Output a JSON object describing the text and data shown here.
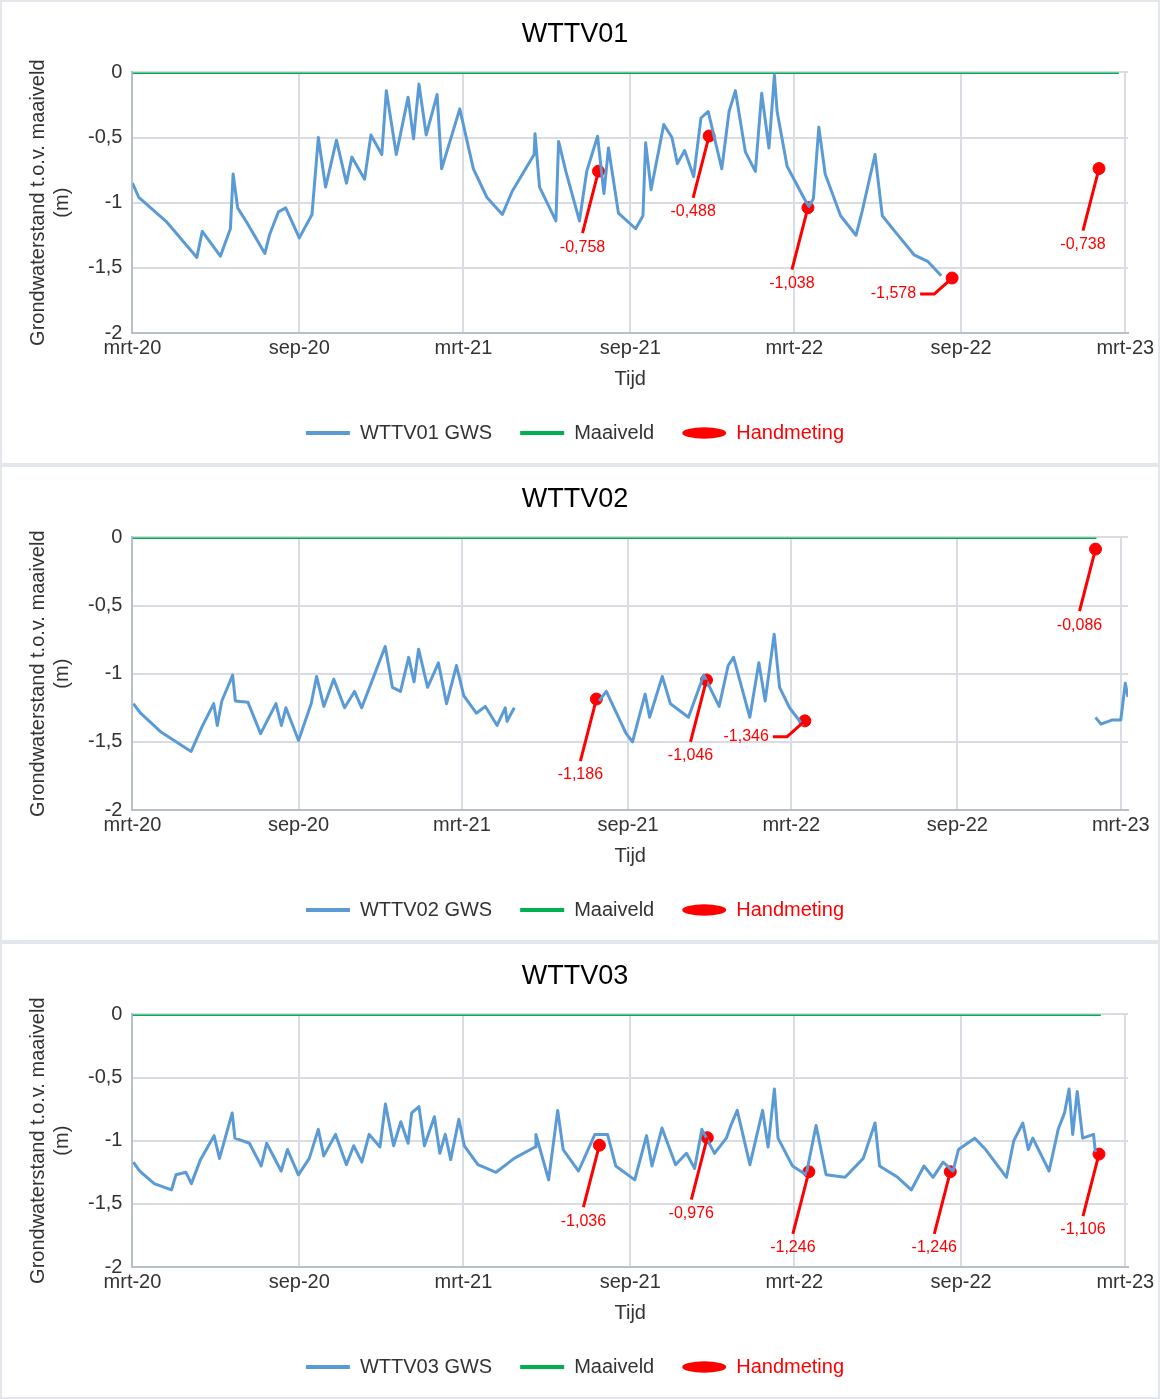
{
  "chart_data": [
    {
      "type": "line",
      "title": "WTTV01",
      "xlabel": "Tijd",
      "ylabel": "Grondwaterstand t.o.v. maaiveld (m)",
      "xlim": [
        "2020-03-01",
        "2023-03-04"
      ],
      "ylim": [
        -2,
        0
      ],
      "xticks": [
        {
          "value": "2020-03-01",
          "label": "mrt-20"
        },
        {
          "value": "2020-09-01",
          "label": "sep-20"
        },
        {
          "value": "2021-03-01",
          "label": "mrt-21"
        },
        {
          "value": "2021-09-01",
          "label": "sep-21"
        },
        {
          "value": "2022-03-01",
          "label": "mrt-22"
        },
        {
          "value": "2022-09-01",
          "label": "sep-22"
        },
        {
          "value": "2023-03-01",
          "label": "mrt-23"
        }
      ],
      "yticks": [
        {
          "value": 0,
          "label": "0"
        },
        {
          "value": -0.5,
          "label": "-0,5"
        },
        {
          "value": -1,
          "label": "-1"
        },
        {
          "value": -1.5,
          "label": "-1,5"
        },
        {
          "value": -2,
          "label": "-2"
        }
      ],
      "grid": true,
      "legend": "bottom",
      "series": [
        {
          "name": "WTTV01 GWS",
          "type": "line",
          "marker": "none",
          "color": "#5b9bd5",
          "x": [
            "2020-03-01",
            "2020-03-08",
            "2020-04-08",
            "2020-05-11",
            "2020-05-17",
            "2020-06-06",
            "2020-06-17",
            "2020-06-20",
            "2020-06-25",
            "2020-07-05",
            "2020-07-25",
            "2020-07-30",
            "2020-08-09",
            "2020-08-17",
            "2020-09-01",
            "2020-09-15",
            "2020-09-22",
            "2020-09-30",
            "2020-10-12",
            "2020-10-23",
            "2020-10-29",
            "2020-11-12",
            "2020-11-19",
            "2020-12-01",
            "2020-12-06",
            "2020-12-17",
            "2020-12-30",
            "2021-01-05",
            "2021-01-11",
            "2021-01-19",
            "2021-01-31",
            "2021-02-05",
            "2021-02-25",
            "2021-03-12",
            "2021-03-27",
            "2021-04-13",
            "2021-04-24",
            "2021-05-18",
            "2021-05-19",
            "2021-05-24",
            "2021-06-11",
            "2021-06-14",
            "2021-06-22",
            "2021-07-07",
            "2021-07-15",
            "2021-07-27",
            "2021-08-03",
            "2021-08-08",
            "2021-08-19",
            "2021-09-07",
            "2021-09-15",
            "2021-09-18",
            "2021-09-24",
            "2021-10-08",
            "2021-10-17",
            "2021-10-23",
            "2021-10-31",
            "2021-11-10",
            "2021-11-18",
            "2021-11-26",
            "2021-12-11",
            "2021-12-19",
            "2021-12-26",
            "2022-01-06",
            "2022-01-17",
            "2022-01-24",
            "2022-02-01",
            "2022-02-07",
            "2022-02-10",
            "2022-02-21",
            "2022-03-12",
            "2022-03-17",
            "2022-03-22",
            "2022-03-28",
            "2022-04-04",
            "2022-04-21",
            "2022-05-08",
            "2022-05-15",
            "2022-05-29",
            "2022-06-06",
            "2022-06-21",
            "2022-07-11",
            "2022-07-26",
            "2022-08-10"
          ],
          "values": [
            -0.85,
            -0.96,
            -1.15,
            -1.42,
            -1.22,
            -1.41,
            -1.2,
            -0.78,
            -1.04,
            -1.15,
            -1.39,
            -1.25,
            -1.07,
            -1.04,
            -1.27,
            -1.09,
            -0.5,
            -0.88,
            -0.52,
            -0.85,
            -0.65,
            -0.82,
            -0.48,
            -0.63,
            -0.14,
            -0.63,
            -0.19,
            -0.51,
            -0.09,
            -0.48,
            -0.17,
            -0.74,
            -0.28,
            -0.74,
            -0.96,
            -1.09,
            -0.91,
            -0.63,
            -0.47,
            -0.88,
            -1.14,
            -0.53,
            -0.76,
            -1.14,
            -0.76,
            -0.49,
            -0.93,
            -0.58,
            -1.08,
            -1.2,
            -1.1,
            -0.54,
            -0.9,
            -0.4,
            -0.5,
            -0.7,
            -0.6,
            -0.8,
            -0.35,
            -0.3,
            -0.74,
            -0.3,
            -0.14,
            -0.61,
            -0.76,
            -0.16,
            -0.58,
            -0.02,
            -0.3,
            -0.72,
            -0.97,
            -1.03,
            -0.97,
            -0.42,
            -0.78,
            -1.1,
            -1.25,
            -1.06,
            -0.63,
            -1.1,
            -1.23,
            -1.4,
            -1.45,
            -1.56
          ]
        },
        {
          "name": "Maaiveld",
          "type": "line",
          "marker": "none",
          "color": "#00b050",
          "x": [
            "2020-03-01",
            "2023-02-22"
          ],
          "values": [
            0,
            0
          ]
        },
        {
          "name": "Handmeting",
          "type": "scatter",
          "marker": "circle",
          "color": "#ff0000",
          "x": [
            "2021-07-28",
            "2021-11-27",
            "2022-03-16",
            "2022-08-22",
            "2023-01-31"
          ],
          "values": [
            -0.758,
            -0.488,
            -1.038,
            -1.578,
            -0.738
          ],
          "value_labels": [
            "-0,758",
            "-0,488",
            "-1,038",
            "-1,578",
            "-0,738"
          ]
        }
      ]
    },
    {
      "type": "line",
      "title": "WTTV02",
      "xlabel": "Tijd",
      "ylabel": "Grondwaterstand t.o.v. maaiveld (m)",
      "xlim": [
        "2020-03-01",
        "2023-03-09"
      ],
      "ylim": [
        -2,
        0
      ],
      "xticks": [
        {
          "value": "2020-03-01",
          "label": "mrt-20"
        },
        {
          "value": "2020-09-01",
          "label": "sep-20"
        },
        {
          "value": "2021-03-01",
          "label": "mrt-21"
        },
        {
          "value": "2021-09-01",
          "label": "sep-21"
        },
        {
          "value": "2022-03-01",
          "label": "mrt-22"
        },
        {
          "value": "2022-09-01",
          "label": "sep-22"
        },
        {
          "value": "2023-03-01",
          "label": "mrt-23"
        }
      ],
      "yticks": [
        {
          "value": 0,
          "label": "0"
        },
        {
          "value": -0.5,
          "label": "-0,5"
        },
        {
          "value": -1,
          "label": "-1"
        },
        {
          "value": -1.5,
          "label": "-1,5"
        },
        {
          "value": -2,
          "label": "-2"
        }
      ],
      "grid": true,
      "legend": "bottom",
      "series": [
        {
          "name": "WTTV02 GWS",
          "type": "line",
          "marker": "none",
          "color": "#5b9bd5",
          "x": [
            "2020-03-02",
            "2020-03-10",
            "2020-04-02",
            "2020-05-05",
            "2020-05-17",
            "2020-05-30",
            "2020-06-03",
            "2020-06-08",
            "2020-06-20",
            "2020-06-23",
            "2020-07-07",
            "2020-07-21",
            "2020-08-07",
            "2020-08-13",
            "2020-08-18",
            "2020-09-01",
            "2020-09-15",
            "2020-09-21",
            "2020-09-29",
            "2020-10-10",
            "2020-10-22",
            "2020-11-02",
            "2020-11-10",
            "2020-11-21",
            "2020-12-06",
            "2020-12-14",
            "2020-12-23",
            "2021-01-01",
            "2021-01-07",
            "2021-01-12",
            "2021-01-22",
            "2021-02-03",
            "2021-02-12",
            "2021-02-23",
            "2021-03-03",
            "2021-03-17",
            "2021-03-27",
            "2021-04-09",
            "2021-04-18",
            "2021-04-20",
            "2021-04-28",
            "2021-06-01",
            "2021-07-31",
            "2021-08-08",
            "2021-08-30",
            "2021-09-06",
            "2021-09-20",
            "2021-09-25",
            "2021-10-09",
            "2021-10-18",
            "2021-11-07",
            "2021-11-24",
            "2021-12-11",
            "2021-12-21",
            "2021-12-27",
            "2022-01-14",
            "2022-01-24",
            "2022-01-31",
            "2022-02-10",
            "2022-02-16",
            "2022-02-27",
            "2022-03-14",
            "2022-08-01",
            "2023-02-01",
            "2023-02-07",
            "2023-02-19",
            "2023-03-01",
            "2023-03-06",
            "2023-03-09"
          ],
          "values": [
            -1.22,
            -1.29,
            -1.43,
            -1.57,
            -1.39,
            -1.22,
            -1.38,
            -1.2,
            -1.01,
            -1.2,
            -1.21,
            -1.44,
            -1.22,
            -1.38,
            -1.25,
            -1.49,
            -1.22,
            -1.02,
            -1.24,
            -1.04,
            -1.25,
            -1.13,
            -1.25,
            -1.06,
            -0.8,
            -1.1,
            -1.13,
            -0.88,
            -1.06,
            -0.82,
            -1.1,
            -0.92,
            -1.22,
            -0.94,
            -1.16,
            -1.29,
            -1.24,
            -1.38,
            -1.25,
            -1.35,
            -1.25,
            null,
            -1.2,
            -1.13,
            -1.44,
            -1.5,
            -1.15,
            -1.32,
            -1.02,
            -1.22,
            -1.32,
            -1.01,
            -1.24,
            -0.94,
            -0.88,
            -1.32,
            -0.92,
            -1.2,
            -0.71,
            -1.1,
            -1.25,
            -1.38,
            null,
            -1.32,
            -1.37,
            -1.34,
            -1.34,
            -1.07,
            -1.17
          ]
        },
        {
          "name": "Maaiveld",
          "type": "line",
          "marker": "none",
          "color": "#00b050",
          "x": [
            "2020-03-01",
            "2023-02-02"
          ],
          "values": [
            0,
            0
          ]
        },
        {
          "name": "Handmeting",
          "type": "scatter",
          "marker": "circle",
          "color": "#ff0000",
          "x": [
            "2021-07-28",
            "2021-11-27",
            "2022-03-16",
            "2023-02-01"
          ],
          "values": [
            -1.186,
            -1.046,
            -1.346,
            -0.086
          ],
          "value_labels": [
            "-1,186",
            "-1,046",
            "-1,346",
            "-0,086"
          ]
        }
      ]
    },
    {
      "type": "line",
      "title": "WTTV03",
      "xlabel": "Tijd",
      "ylabel": "Grondwaterstand t.o.v. maaiveld (m)",
      "xlim": [
        "2020-03-01",
        "2023-03-04"
      ],
      "ylim": [
        -2,
        0
      ],
      "xticks": [
        {
          "value": "2020-03-01",
          "label": "mrt-20"
        },
        {
          "value": "2020-09-01",
          "label": "sep-20"
        },
        {
          "value": "2021-03-01",
          "label": "mrt-21"
        },
        {
          "value": "2021-09-01",
          "label": "sep-21"
        },
        {
          "value": "2022-03-01",
          "label": "mrt-22"
        },
        {
          "value": "2022-09-01",
          "label": "sep-22"
        },
        {
          "value": "2023-03-01",
          "label": "mrt-23"
        }
      ],
      "yticks": [
        {
          "value": 0,
          "label": "0"
        },
        {
          "value": -0.5,
          "label": "-0,5"
        },
        {
          "value": -1,
          "label": "-1"
        },
        {
          "value": -1.5,
          "label": "-1,5"
        },
        {
          "value": -2,
          "label": "-2"
        }
      ],
      "grid": true,
      "legend": "bottom",
      "series": [
        {
          "name": "WTTV03 GWS",
          "type": "line",
          "marker": "none",
          "color": "#5b9bd5",
          "x": [
            "2020-03-02",
            "2020-03-09",
            "2020-03-25",
            "2020-04-13",
            "2020-04-18",
            "2020-04-29",
            "2020-05-05",
            "2020-05-15",
            "2020-05-30",
            "2020-06-05",
            "2020-06-19",
            "2020-06-22",
            "2020-07-08",
            "2020-07-21",
            "2020-07-27",
            "2020-08-12",
            "2020-08-19",
            "2020-08-31",
            "2020-09-12",
            "2020-09-22",
            "2020-09-28",
            "2020-10-11",
            "2020-10-23",
            "2020-10-31",
            "2020-11-09",
            "2020-11-17",
            "2020-11-29",
            "2020-12-05",
            "2020-12-14",
            "2020-12-22",
            "2020-12-30",
            "2021-01-03",
            "2021-01-11",
            "2021-01-17",
            "2021-01-28",
            "2021-02-03",
            "2021-02-09",
            "2021-02-15",
            "2021-02-24",
            "2021-03-02",
            "2021-03-17",
            "2021-04-06",
            "2021-04-26",
            "2021-05-19",
            "2021-05-20",
            "2021-06-03",
            "2021-06-13",
            "2021-06-19",
            "2021-07-06",
            "2021-07-24",
            "2021-08-07",
            "2021-08-16",
            "2021-09-06",
            "2021-09-19",
            "2021-09-25",
            "2021-10-06",
            "2021-10-21",
            "2021-11-02",
            "2021-11-11",
            "2021-11-19",
            "2021-12-03",
            "2021-12-16",
            "2021-12-21",
            "2021-12-28",
            "2022-01-11",
            "2022-01-25",
            "2022-01-31",
            "2022-02-07",
            "2022-02-11",
            "2022-02-27",
            "2022-03-14",
            "2022-03-25",
            "2022-04-05",
            "2022-04-26",
            "2022-05-16",
            "2022-05-29",
            "2022-06-03",
            "2022-06-23",
            "2022-07-08",
            "2022-07-22",
            "2022-08-01",
            "2022-08-12",
            "2022-08-23",
            "2022-08-29",
            "2022-09-16",
            "2022-09-28",
            "2022-10-21",
            "2022-10-29",
            "2022-11-08",
            "2022-11-14",
            "2022-11-19",
            "2022-12-07",
            "2022-12-17",
            "2022-12-24",
            "2022-12-29",
            "2023-01-02",
            "2023-01-07",
            "2023-01-13",
            "2023-01-25",
            "2023-01-27"
          ],
          "values": [
            -1.17,
            -1.24,
            -1.34,
            -1.39,
            -1.27,
            -1.25,
            -1.34,
            -1.15,
            -0.96,
            -1.14,
            -0.78,
            -0.98,
            -1.02,
            -1.2,
            -1.02,
            -1.24,
            -1.07,
            -1.27,
            -1.14,
            -0.91,
            -1.12,
            -0.95,
            -1.19,
            -1.04,
            -1.17,
            -0.95,
            -1.05,
            -0.71,
            -1.04,
            -0.85,
            -1.02,
            -0.78,
            -0.73,
            -1.04,
            -0.81,
            -1.1,
            -0.95,
            -1.15,
            -0.83,
            -1.04,
            -1.19,
            -1.25,
            -1.14,
            -1.05,
            -0.95,
            -1.31,
            -0.76,
            -1.07,
            -1.24,
            -0.95,
            -0.95,
            -1.2,
            -1.31,
            -0.96,
            -1.2,
            -0.9,
            -1.19,
            -1.1,
            -1.22,
            -0.91,
            -1.1,
            -0.98,
            -0.88,
            -0.76,
            -1.19,
            -0.76,
            -1.05,
            -0.59,
            -0.98,
            -1.2,
            -1.27,
            -0.88,
            -1.27,
            -1.29,
            -1.14,
            -0.86,
            -1.2,
            -1.29,
            -1.39,
            -1.2,
            -1.29,
            -1.17,
            -1.24,
            -1.07,
            -0.98,
            -1.07,
            -1.29,
            -1.0,
            -0.86,
            -1.07,
            -0.98,
            -1.24,
            -0.91,
            -0.78,
            -0.59,
            -0.95,
            -0.61,
            -0.98,
            -0.95,
            -1.09
          ]
        },
        {
          "name": "Maaiveld",
          "type": "line",
          "marker": "none",
          "color": "#00b050",
          "x": [
            "2020-03-01",
            "2023-02-02"
          ],
          "values": [
            0,
            0
          ]
        },
        {
          "name": "Handmeting",
          "type": "scatter",
          "marker": "circle",
          "color": "#ff0000",
          "x": [
            "2021-07-29",
            "2021-11-25",
            "2022-03-17",
            "2022-08-20",
            "2023-01-31"
          ],
          "values": [
            -1.036,
            -0.976,
            -1.246,
            -1.246,
            -1.106
          ],
          "value_labels": [
            "-1,036",
            "-0,976",
            "-1,246",
            "-1,246",
            "-1,106"
          ]
        }
      ]
    }
  ]
}
